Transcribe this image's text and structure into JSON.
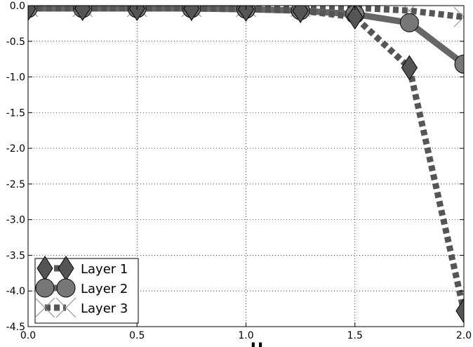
{
  "chart_data": {
    "type": "line",
    "x": [
      0.0,
      0.25,
      0.5,
      0.75,
      1.0,
      1.25,
      1.5,
      1.75,
      2.0
    ],
    "series": [
      {
        "name": "Layer 1",
        "values": [
          -0.04,
          -0.04,
          -0.04,
          -0.04,
          -0.05,
          -0.07,
          -0.16,
          -0.87,
          -4.28
        ],
        "line_style": "dotted",
        "marker": "diamond",
        "color": "#555555"
      },
      {
        "name": "Layer 2",
        "values": [
          -0.04,
          -0.04,
          -0.04,
          -0.04,
          -0.05,
          -0.07,
          -0.12,
          -0.24,
          -0.82
        ],
        "line_style": "solid",
        "marker": "circle",
        "color": "#666666"
      },
      {
        "name": "Layer 3",
        "values": [
          -0.02,
          -0.02,
          -0.02,
          -0.02,
          -0.02,
          -0.02,
          -0.03,
          -0.07,
          -0.16
        ],
        "line_style": "dotted",
        "marker": "x",
        "color": "#555555"
      }
    ],
    "xlim": [
      0.0,
      2.0
    ],
    "ylim": [
      -4.5,
      0.0
    ],
    "xticks": [
      "0.0",
      "0.5",
      "1.0",
      "1.5",
      "2.0"
    ],
    "yticks": [
      "0.0",
      "-0.5",
      "-1.0",
      "-1.5",
      "-2.0",
      "-2.5",
      "-3.0",
      "-3.5",
      "-4.0",
      "-4.5"
    ],
    "grid": true,
    "legend_position": "bottom-left",
    "xlabel": "H"
  }
}
